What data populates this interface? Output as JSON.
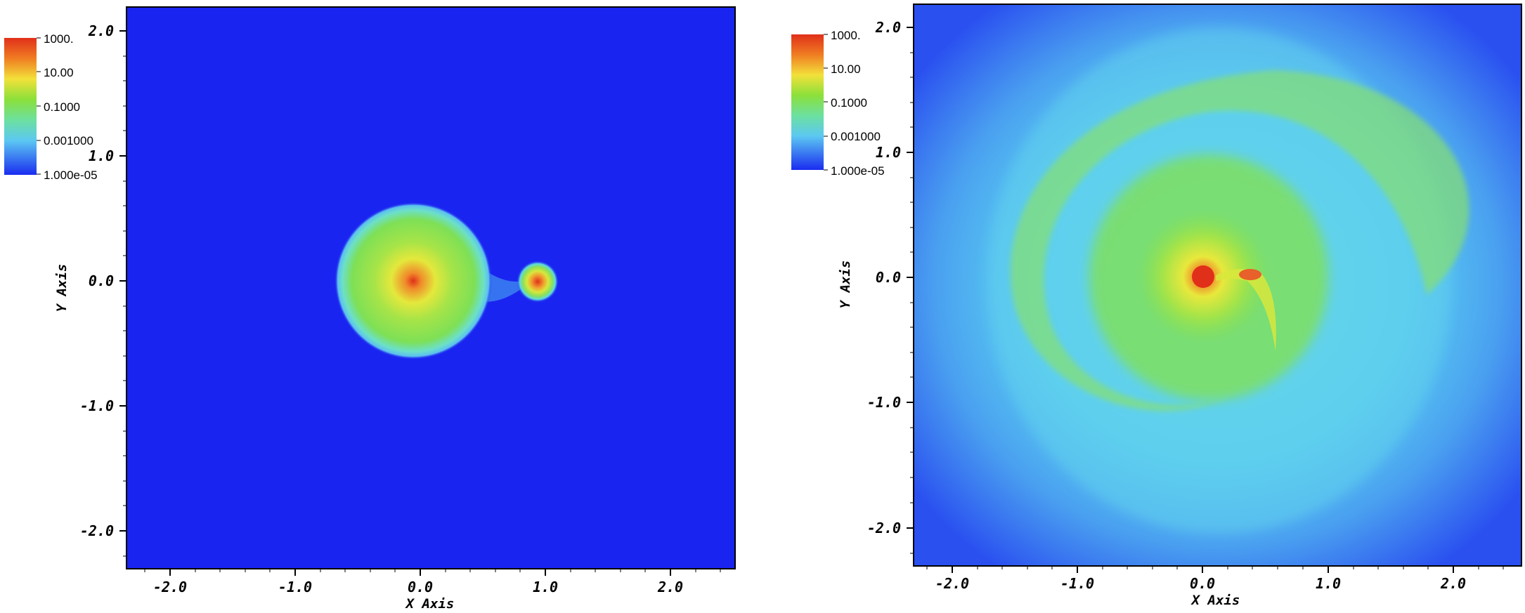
{
  "panels": [
    {
      "id": "left",
      "x_axis_label": "X Axis",
      "y_axis_label": "Y Axis",
      "x_ticks": [
        "-2.0",
        "-1.0",
        "0.0",
        "1.0",
        "2.0"
      ],
      "y_ticks": [
        "2.0",
        "1.0",
        "0.0",
        "-1.0",
        "-2.0"
      ],
      "colorbar_labels": [
        "1000.",
        "10.00",
        "0.1000",
        "0.001000",
        "1.000e-05"
      ]
    },
    {
      "id": "right",
      "x_axis_label": "X Axis",
      "y_axis_label": "Y Axis",
      "x_ticks": [
        "-2.0",
        "-1.0",
        "0.0",
        "1.0",
        "2.0"
      ],
      "y_ticks": [
        "2.0",
        "1.0",
        "0.0",
        "-1.0",
        "-2.0"
      ],
      "colorbar_labels": [
        "1000.",
        "10.00",
        "0.1000",
        "0.001000",
        "1.000e-05"
      ]
    }
  ],
  "colors": {
    "background_low": "#1a24f0",
    "low_cyan": "#5ad8f0",
    "mid_green": "#7ee04a",
    "high_yellow": "#f0e040",
    "peak_red": "#e23a1c"
  }
}
